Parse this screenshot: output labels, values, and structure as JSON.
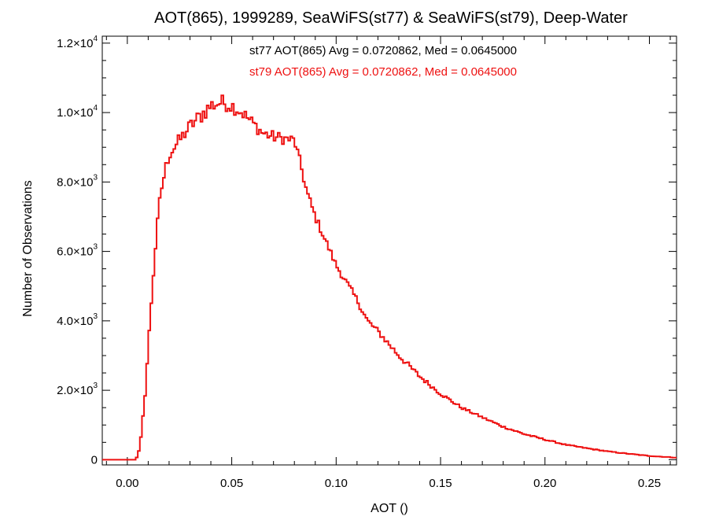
{
  "chart_data": {
    "type": "line",
    "title": "AOT(865), 1999289, SeaWiFS(st77) & SeaWiFS(st79), Deep-Water",
    "xlabel": "AOT ()",
    "ylabel": "Number of Observations",
    "xlim": [
      -0.012,
      0.263
    ],
    "ylim": [
      -150,
      12200
    ],
    "grid": false,
    "x_ticks": [
      {
        "value": 0.0,
        "label": "0.00"
      },
      {
        "value": 0.05,
        "label": "0.05"
      },
      {
        "value": 0.1,
        "label": "0.10"
      },
      {
        "value": 0.15,
        "label": "0.15"
      },
      {
        "value": 0.2,
        "label": "0.20"
      },
      {
        "value": 0.25,
        "label": "0.25"
      }
    ],
    "y_ticks": [
      {
        "value": 0,
        "mantissa": "0",
        "exponent": ""
      },
      {
        "value": 2000,
        "mantissa": "2.0×10",
        "exponent": "3"
      },
      {
        "value": 4000,
        "mantissa": "4.0×10",
        "exponent": "3"
      },
      {
        "value": 6000,
        "mantissa": "6.0×10",
        "exponent": "3"
      },
      {
        "value": 8000,
        "mantissa": "8.0×10",
        "exponent": "3"
      },
      {
        "value": 10000,
        "mantissa": "1.0×10",
        "exponent": "4"
      },
      {
        "value": 12000,
        "mantissa": "1.2×10",
        "exponent": "4"
      }
    ],
    "annotations": [
      {
        "text": "st77 AOT(865) Avg = 0.0720862, Med = 0.0645000",
        "color": "#000000"
      },
      {
        "text": "st79 AOT(865) Avg = 0.0720862, Med = 0.0645000",
        "color": "#ee1111"
      }
    ],
    "series": [
      {
        "color": "#ee1111",
        "bin_width": 0.001,
        "profile_x": [
          -0.012,
          0.004,
          0.006,
          0.008,
          0.01,
          0.012,
          0.014,
          0.016,
          0.018,
          0.02,
          0.025,
          0.03,
          0.035,
          0.04,
          0.045,
          0.05,
          0.055,
          0.06,
          0.065,
          0.07,
          0.075,
          0.08,
          0.083,
          0.086,
          0.09,
          0.095,
          0.1,
          0.105,
          0.11,
          0.115,
          0.12,
          0.125,
          0.13,
          0.135,
          0.14,
          0.145,
          0.15,
          0.155,
          0.16,
          0.17,
          0.18,
          0.19,
          0.2,
          0.21,
          0.22,
          0.23,
          0.24,
          0.25,
          0.263
        ],
        "profile_y": [
          0,
          0,
          300,
          1500,
          3200,
          5000,
          6500,
          7700,
          8300,
          8800,
          9200,
          9600,
          9900,
          10200,
          10300,
          10200,
          10000,
          9700,
          9400,
          9300,
          9250,
          9200,
          8500,
          7700,
          7000,
          6300,
          5600,
          5100,
          4600,
          4000,
          3700,
          3350,
          3000,
          2700,
          2400,
          2150,
          1900,
          1700,
          1500,
          1220,
          950,
          740,
          580,
          430,
          330,
          240,
          170,
          110,
          60
        ],
        "noise_amplitude": [
          0,
          0,
          60,
          100,
          150,
          170,
          180,
          200,
          200,
          200,
          200,
          220,
          250,
          250,
          230,
          220,
          200,
          190,
          180,
          180,
          170,
          160,
          150,
          140,
          120,
          110,
          100,
          100,
          90,
          90,
          90,
          90,
          90,
          80,
          70,
          60,
          50,
          50,
          40,
          30,
          30,
          25,
          20,
          15,
          15,
          10,
          10,
          8,
          5
        ]
      }
    ]
  }
}
